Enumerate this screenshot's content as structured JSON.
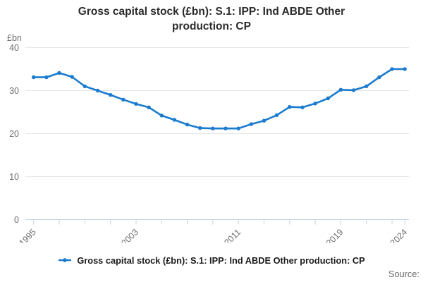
{
  "header": {
    "title": "Gross capital stock (£bn): S.1: IPP: Ind ABDE Other production: CP"
  },
  "legend": {
    "label": "Gross capital stock (£bn): S.1: IPP: Ind ABDE Other production: CP"
  },
  "footer": {
    "source_label": "Source:"
  },
  "chart_data": {
    "type": "line",
    "title": "Gross capital stock (£bn): S.1: IPP: Ind ABDE Other production: CP",
    "unit_label": "£bn",
    "x": [
      1995,
      1996,
      1997,
      1998,
      1999,
      2000,
      2001,
      2002,
      2003,
      2004,
      2005,
      2006,
      2007,
      2008,
      2009,
      2010,
      2011,
      2012,
      2013,
      2014,
      2015,
      2016,
      2017,
      2018,
      2019,
      2020,
      2021,
      2022,
      2023,
      2024
    ],
    "series": [
      {
        "name": "Gross capital stock (£bn): S.1: IPP: Ind ABDE Other production: CP",
        "values": [
          33.1,
          33.1,
          34.1,
          33.2,
          31.0,
          30.0,
          29.0,
          27.9,
          26.9,
          26.1,
          24.2,
          23.2,
          22.1,
          21.3,
          21.2,
          21.2,
          21.2,
          22.2,
          23.0,
          24.3,
          26.2,
          26.1,
          27.0,
          28.2,
          30.2,
          30.1,
          31.0,
          33.1,
          35.0,
          35.0
        ]
      }
    ],
    "ylim": [
      0,
      40
    ],
    "yticks": [
      0,
      10,
      20,
      30,
      40
    ],
    "xtick_labels": [
      1995,
      2003,
      2011,
      2019,
      2024
    ],
    "tick_years": [
      1995,
      1997,
      1999,
      2001,
      2003,
      2005,
      2007,
      2009,
      2011,
      2013,
      2015,
      2017,
      2019,
      2021,
      2023,
      2024
    ],
    "grid": "horizontal-only",
    "legend_position": "bottom",
    "marker": "circle",
    "colors": {
      "line": "#1b7bce",
      "grid": "#e6e6e6",
      "axis": "#c9d2e4",
      "axis_text": "#6e6e6e"
    }
  }
}
